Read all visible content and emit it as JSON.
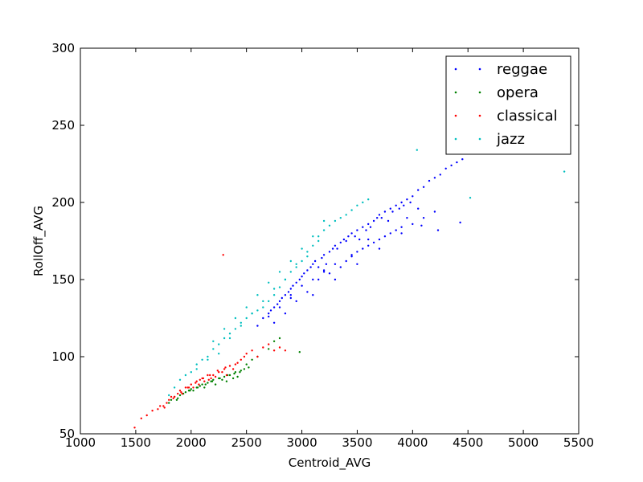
{
  "chart_data": {
    "type": "scatter",
    "title": "",
    "xlabel": "Centroid_AVG",
    "ylabel": "RollOff_AVG",
    "xlim": [
      1000,
      5500
    ],
    "ylim": [
      50,
      300
    ],
    "xticks": [
      1000,
      1500,
      2000,
      2500,
      3000,
      3500,
      4000,
      4500,
      5000,
      5500
    ],
    "yticks": [
      50,
      100,
      150,
      200,
      250,
      300
    ],
    "grid": false,
    "legend_position": "top-right",
    "series": [
      {
        "name": "reggae",
        "color": "#0000ff",
        "x": [
          2600,
          2650,
          2700,
          2720,
          2750,
          2780,
          2800,
          2820,
          2850,
          2880,
          2900,
          2920,
          2950,
          2980,
          3000,
          3020,
          3050,
          3080,
          3100,
          3120,
          3150,
          3180,
          3200,
          3220,
          3250,
          3280,
          3300,
          3320,
          3350,
          3380,
          3400,
          3420,
          3450,
          3480,
          3500,
          3520,
          3550,
          3580,
          3600,
          3620,
          3650,
          3680,
          3700,
          3720,
          3750,
          3780,
          3800,
          3820,
          3850,
          3880,
          3900,
          3920,
          3950,
          3980,
          4000,
          4050,
          4100,
          4150,
          4200,
          4250,
          4300,
          4350,
          4400,
          4450,
          4500,
          4550,
          4600,
          4700,
          4780,
          2700,
          2800,
          2900,
          3000,
          3100,
          3200,
          3300,
          3400,
          3500,
          3600,
          3700,
          3800,
          3900,
          4000,
          4100,
          4200,
          2850,
          2950,
          3050,
          3150,
          3250,
          3350,
          3450,
          3550,
          3650,
          3750,
          3850,
          3950,
          4050,
          2750,
          3100,
          3300,
          3500,
          2900,
          3700,
          3900,
          4430,
          4230,
          4080,
          3450,
          3600,
          3200
        ],
        "y": [
          120,
          125,
          128,
          130,
          132,
          134,
          136,
          138,
          140,
          142,
          144,
          146,
          148,
          150,
          152,
          154,
          156,
          158,
          160,
          162,
          158,
          164,
          166,
          160,
          168,
          170,
          172,
          170,
          174,
          176,
          175,
          178,
          180,
          178,
          182,
          176,
          184,
          182,
          186,
          184,
          188,
          190,
          192,
          190,
          194,
          188,
          196,
          194,
          198,
          196,
          200,
          198,
          202,
          200,
          204,
          208,
          210,
          214,
          216,
          218,
          222,
          224,
          226,
          228,
          232,
          234,
          232,
          236,
          232,
          126,
          132,
          140,
          146,
          150,
          156,
          160,
          162,
          168,
          172,
          176,
          180,
          184,
          186,
          190,
          194,
          128,
          136,
          142,
          150,
          154,
          158,
          166,
          170,
          174,
          178,
          182,
          190,
          196,
          122,
          140,
          150,
          160,
          138,
          170,
          180,
          187,
          182,
          185,
          165,
          176,
          155
        ]
      },
      {
        "name": "opera",
        "color": "#008000",
        "x": [
          1800,
          1820,
          1850,
          1880,
          1900,
          1920,
          1950,
          1980,
          2000,
          2020,
          2050,
          2080,
          2100,
          2120,
          2150,
          2180,
          2200,
          2220,
          2250,
          2280,
          2300,
          2320,
          2350,
          2380,
          2400,
          2420,
          2450,
          2480,
          2500,
          2520,
          1870,
          1930,
          1990,
          2060,
          2130,
          2190,
          2260,
          2330,
          2390,
          2440,
          2980,
          2600,
          2550,
          2700,
          2750,
          2800
        ],
        "y": [
          70,
          72,
          74,
          73,
          75,
          76,
          77,
          78,
          79,
          78,
          80,
          81,
          82,
          80,
          83,
          84,
          85,
          82,
          86,
          85,
          87,
          84,
          88,
          86,
          90,
          87,
          91,
          92,
          95,
          93,
          72,
          76,
          78,
          80,
          82,
          84,
          86,
          88,
          89,
          90,
          103,
          100,
          98,
          105,
          110,
          112
        ]
      },
      {
        "name": "classical",
        "color": "#ff0000",
        "x": [
          1490,
          1550,
          1600,
          1650,
          1700,
          1720,
          1750,
          1780,
          1800,
          1820,
          1850,
          1880,
          1900,
          1920,
          1950,
          1980,
          2000,
          2020,
          2050,
          2080,
          2100,
          2120,
          2150,
          2180,
          2200,
          2220,
          2250,
          2280,
          2300,
          2320,
          2350,
          2380,
          2400,
          2420,
          2450,
          2480,
          2500,
          2550,
          2600,
          2650,
          2700,
          2750,
          2800,
          2850,
          1760,
          1840,
          1910,
          1970,
          2040,
          2110,
          2170,
          2240,
          2310,
          2290,
          2160,
          2070
        ],
        "y": [
          54,
          60,
          62,
          65,
          66,
          68,
          68,
          70,
          72,
          74,
          74,
          76,
          78,
          76,
          80,
          80,
          82,
          80,
          84,
          85,
          86,
          84,
          88,
          86,
          88,
          87,
          90,
          90,
          92,
          88,
          94,
          92,
          95,
          96,
          98,
          100,
          102,
          104,
          100,
          106,
          108,
          104,
          106,
          104,
          67,
          73,
          77,
          80,
          83,
          86,
          88,
          91,
          93,
          166,
          85,
          82
        ]
      },
      {
        "name": "jazz",
        "color": "#00bfbf",
        "x": [
          1800,
          1850,
          1900,
          1950,
          2000,
          2050,
          2100,
          2150,
          2200,
          2250,
          2300,
          2350,
          2400,
          2450,
          2500,
          2550,
          2600,
          2650,
          2700,
          2750,
          2800,
          2850,
          2900,
          2950,
          3000,
          3050,
          3100,
          3150,
          3200,
          3250,
          3300,
          3350,
          3400,
          3450,
          3500,
          3550,
          3600,
          4040,
          4520,
          5370,
          2200,
          2300,
          2400,
          2500,
          2600,
          2700,
          2800,
          2900,
          3000,
          3100,
          3200,
          2250,
          2350,
          2450,
          2550,
          2650,
          2750,
          2850,
          2950,
          3050,
          3150,
          2150,
          2050
        ],
        "y": [
          75,
          80,
          85,
          88,
          90,
          95,
          98,
          100,
          105,
          108,
          112,
          115,
          118,
          120,
          125,
          128,
          130,
          132,
          136,
          140,
          145,
          150,
          155,
          160,
          162,
          168,
          172,
          178,
          182,
          185,
          188,
          190,
          192,
          195,
          198,
          200,
          202,
          234,
          203,
          220,
          110,
          118,
          125,
          132,
          140,
          148,
          155,
          162,
          170,
          178,
          188,
          102,
          112,
          122,
          128,
          136,
          144,
          150,
          158,
          165,
          175,
          98,
          92
        ]
      }
    ]
  }
}
